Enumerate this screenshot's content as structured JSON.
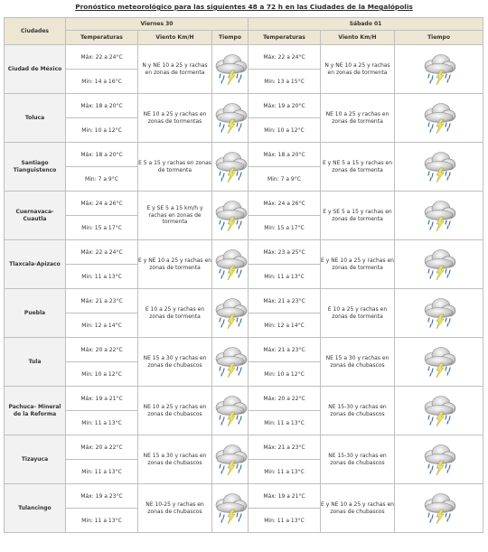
{
  "title": "Pronóstico meteorológico para las siguientes 48 a 72 h en las Ciudades de la Megalópolis",
  "headers": {
    "cities": "Ciudades",
    "day1": "Viernes 30",
    "day2": "Sábado 01",
    "temperatures": "Temperaturas",
    "wind": "Viento Km/H",
    "weather": "Tiempo"
  },
  "icon": "storm-cloud-icon",
  "colors": {
    "max_temp": "#e3332d",
    "min_temp": "#2f9fd6",
    "header_bg": "#ece6d3"
  },
  "rows": [
    {
      "city": "Ciudad de México",
      "d1": {
        "max": "Máx: 22 a 24°C",
        "min": "Min: 14 a 16°C",
        "wind": "N y NE 10 a 25 y rachas en zonas de tormenta"
      },
      "d2": {
        "max": "Máx: 22 a 24°C",
        "min": "Min: 13 a 15°C",
        "wind": "N y NE 10 a 25 y rachas en zonas de tormenta"
      }
    },
    {
      "city": "Toluca",
      "d1": {
        "max": "Máx: 18 a 20°C",
        "min": "Min: 10 a 12°C",
        "wind": "NE 10 a 25 y rachas en zonas de tormentas"
      },
      "d2": {
        "max": "Máx: 19 a 20°C",
        "min": "Min: 10 a 12°C",
        "wind": "NE 10 a 25 y rachas en zonas de tormenta"
      }
    },
    {
      "city": "Santiago Tianguistenco",
      "d1": {
        "max": "Máx: 18 a 20°C",
        "min": "Min: 7 a 9°C",
        "wind": "E 5 a 15 y rachas en zonas de tormenta"
      },
      "d2": {
        "max": "Máx: 18 a 20°C",
        "min": "Min: 7 a 9°C",
        "wind": "E y NE 5 a 15 y rachas en zonas de tormenta"
      }
    },
    {
      "city": "Cuernavaca-Cuautla",
      "d1": {
        "max": "Máx: 24 a 26°C",
        "min": "Min: 15 a 17°C",
        "wind": "E y SE 5 a 15 km/h y rachas en zonas de tormenta"
      },
      "d2": {
        "max": "Máx: 24 a 26°C",
        "min": "Min: 15 a 17°C",
        "wind": "E y SE 5 a 15 y rachas en zonas de tormenta"
      }
    },
    {
      "city": "Tlaxcala-Apizaco",
      "d1": {
        "max": "Máx: 22 a 24°C",
        "min": "Min: 11 a 13°C",
        "wind": "E y NE 10 a 25 y rachas en zonas de tormenta"
      },
      "d2": {
        "max": "Máx: 23 a 25°C",
        "min": "Min: 11 a 13°C",
        "wind": "E y NE 10 a 25 y rachas en zonas de tormenta"
      }
    },
    {
      "city": "Puebla",
      "d1": {
        "max": "Máx: 21 a 23°C",
        "min": "Min: 12 a 14°C",
        "wind": "E 10 a 25 y rachas en zonas de tormenta"
      },
      "d2": {
        "max": "Máx: 21 a 23°C",
        "min": "Min: 12 a 14°C",
        "wind": "E 10 a 25 y rachas en zonas de tormenta"
      }
    },
    {
      "city": "Tula",
      "d1": {
        "max": "Máx: 20 a 22°C",
        "min": "Min: 10 a 12°C",
        "wind": "NE 15 a 30 y rachas en zonas de chubascos"
      },
      "d2": {
        "max": "Máx: 21 a 23°C",
        "min": "Min: 10 a 12°C",
        "wind": "NE 15 a 30 y rachas en zonas de chubascos"
      }
    },
    {
      "city": "Pachuca- Mineral de la Reforma",
      "d1": {
        "max": "Máx: 19 a 21°C",
        "min": "Min: 11 a 13°C",
        "wind": "NE 10 a 25 y rachas en zonas de chubascos"
      },
      "d2": {
        "max": "Máx: 20 a 22°C",
        "min": "Min: 11 a 13°C",
        "wind": "NE 15-30 y rachas en zonas de chubascos"
      }
    },
    {
      "city": "Tizayuca",
      "d1": {
        "max": "Máx: 20 a 22°C",
        "min": "Min: 11 a 13°C",
        "wind": "NE 15 a 30 y rachas en zonas de chubascos"
      },
      "d2": {
        "max": "Máx: 21 a 23°C",
        "min": "Min: 11 a 13°C",
        "wind": "NE 15-30 y rachas en zonas de chubascos"
      }
    },
    {
      "city": "Tulancingo",
      "d1": {
        "max": "Máx: 19 a 23°C",
        "min": "Min: 11 a 13°C",
        "wind": "NE 10-25 y rachas en zonas de chubascos"
      },
      "d2": {
        "max": "Máx: 19 a 21°C",
        "min": "Min: 11 a 13°C",
        "wind": "E y NE 10 a 25 y rachas en zonas de chubascos"
      }
    }
  ]
}
